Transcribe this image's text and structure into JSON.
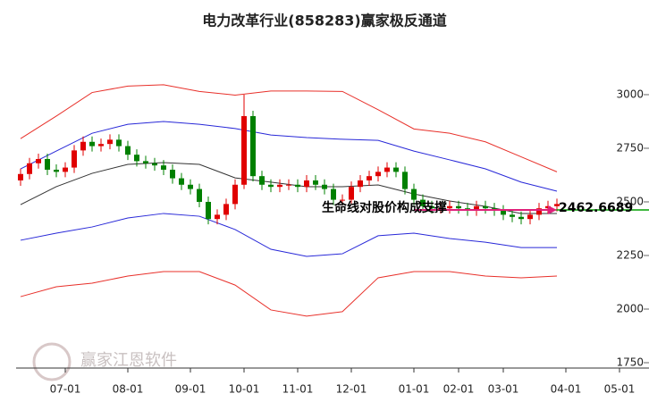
{
  "chart_data": {
    "type": "candlestick",
    "title": "电力改革行业(858283)赢家极反通道",
    "watermark": "赢家江恩软件",
    "annotation": "生命线对股价构成支撑",
    "support_value": 2462.6689,
    "up_color": "#e00000",
    "down_color": "#008000",
    "support_color": "#00a000",
    "arrow_color": "#e0207a",
    "ylim": [
      1725,
      3254
    ],
    "yticks": [
      1750,
      2000,
      2250,
      2500,
      2750,
      3000
    ],
    "xlim": [
      -0.5,
      67.5
    ],
    "xticks": [
      {
        "value": 5,
        "label": "07-01"
      },
      {
        "value": 12,
        "label": "08-01"
      },
      {
        "value": 19,
        "label": "09-01"
      },
      {
        "value": 25,
        "label": "10-01"
      },
      {
        "value": 31,
        "label": "11-01"
      },
      {
        "value": 37,
        "label": "12-01"
      },
      {
        "value": 44,
        "label": "01-01"
      },
      {
        "value": 49,
        "label": "02-01"
      },
      {
        "value": 54,
        "label": "03-01"
      },
      {
        "value": 61,
        "label": "04-01"
      },
      {
        "value": 67,
        "label": "05-01"
      }
    ],
    "candles": [
      [
        2600,
        2655,
        2575,
        2630
      ],
      [
        2630,
        2705,
        2605,
        2680
      ],
      [
        2680,
        2725,
        2655,
        2700
      ],
      [
        2700,
        2725,
        2625,
        2650
      ],
      [
        2650,
        2675,
        2615,
        2640
      ],
      [
        2640,
        2685,
        2615,
        2660
      ],
      [
        2660,
        2765,
        2635,
        2740
      ],
      [
        2740,
        2805,
        2715,
        2780
      ],
      [
        2780,
        2805,
        2735,
        2760
      ],
      [
        2760,
        2795,
        2735,
        2770
      ],
      [
        2770,
        2815,
        2745,
        2790
      ],
      [
        2790,
        2815,
        2735,
        2760
      ],
      [
        2760,
        2785,
        2695,
        2720
      ],
      [
        2720,
        2745,
        2665,
        2690
      ],
      [
        2690,
        2715,
        2655,
        2680
      ],
      [
        2680,
        2705,
        2645,
        2670
      ],
      [
        2670,
        2695,
        2625,
        2650
      ],
      [
        2650,
        2675,
        2585,
        2610
      ],
      [
        2610,
        2635,
        2555,
        2580
      ],
      [
        2580,
        2605,
        2535,
        2560
      ],
      [
        2560,
        2585,
        2475,
        2500
      ],
      [
        2500,
        2525,
        2395,
        2420
      ],
      [
        2420,
        2465,
        2395,
        2440
      ],
      [
        2440,
        2515,
        2415,
        2490
      ],
      [
        2490,
        2605,
        2465,
        2580
      ],
      [
        2580,
        3000,
        2560,
        2900
      ],
      [
        2900,
        2925,
        2595,
        2620
      ],
      [
        2620,
        2645,
        2555,
        2580
      ],
      [
        2580,
        2605,
        2545,
        2570
      ],
      [
        2570,
        2605,
        2545,
        2580
      ],
      [
        2580,
        2605,
        2555,
        2580
      ],
      [
        2580,
        2605,
        2545,
        2570
      ],
      [
        2570,
        2625,
        2545,
        2600
      ],
      [
        2600,
        2625,
        2555,
        2580
      ],
      [
        2580,
        2605,
        2535,
        2560
      ],
      [
        2560,
        2585,
        2485,
        2510
      ],
      [
        2510,
        2535,
        2485,
        2510
      ],
      [
        2510,
        2595,
        2485,
        2570
      ],
      [
        2570,
        2625,
        2545,
        2600
      ],
      [
        2600,
        2645,
        2575,
        2620
      ],
      [
        2620,
        2665,
        2595,
        2640
      ],
      [
        2640,
        2685,
        2615,
        2660
      ],
      [
        2660,
        2685,
        2615,
        2640
      ],
      [
        2640,
        2665,
        2535,
        2560
      ],
      [
        2560,
        2585,
        2485,
        2510
      ],
      [
        2510,
        2535,
        2455,
        2480
      ],
      [
        2480,
        2505,
        2445,
        2470
      ],
      [
        2470,
        2495,
        2445,
        2470
      ],
      [
        2470,
        2505,
        2445,
        2480
      ],
      [
        2480,
        2505,
        2445,
        2470
      ],
      [
        2470,
        2495,
        2435,
        2460
      ],
      [
        2460,
        2505,
        2435,
        2480
      ],
      [
        2480,
        2505,
        2445,
        2470
      ],
      [
        2470,
        2495,
        2435,
        2460
      ],
      [
        2460,
        2485,
        2415,
        2440
      ],
      [
        2440,
        2465,
        2405,
        2430
      ],
      [
        2430,
        2455,
        2395,
        2420
      ],
      [
        2420,
        2465,
        2395,
        2440
      ],
      [
        2440,
        2495,
        2415,
        2470
      ],
      [
        2470,
        2505,
        2445,
        2480
      ],
      [
        2480,
        2515,
        2455,
        2490
      ]
    ],
    "band_x": [
      0,
      4,
      8,
      12,
      16,
      20,
      24,
      28,
      32,
      36,
      40,
      44,
      48,
      52,
      56,
      60
    ],
    "series": [
      {
        "color": "#e8302a",
        "values": [
          2795,
          2900,
          3010,
          3040,
          3046,
          3015,
          2998,
          3017,
          3017,
          3015,
          2930,
          2840,
          2820,
          2780,
          2710,
          2640
        ]
      },
      {
        "color": "#2828d8",
        "values": [
          2654,
          2737,
          2820,
          2862,
          2875,
          2862,
          2842,
          2812,
          2800,
          2792,
          2787,
          2737,
          2696,
          2654,
          2592,
          2550
        ]
      },
      {
        "color": "#333333",
        "values": [
          2487,
          2571,
          2633,
          2675,
          2683,
          2675,
          2612,
          2592,
          2571,
          2571,
          2579,
          2537,
          2504,
          2479,
          2446,
          2446
        ]
      },
      {
        "color": "#2828d8",
        "values": [
          2321,
          2354,
          2383,
          2425,
          2446,
          2433,
          2371,
          2279,
          2246,
          2258,
          2342,
          2354,
          2329,
          2312,
          2287,
          2287
        ]
      },
      {
        "color": "#e8302a",
        "values": [
          2058,
          2104,
          2121,
          2154,
          2175,
          2175,
          2112,
          1996,
          1967,
          1988,
          2146,
          2175,
          2175,
          2154,
          2146,
          2154
        ]
      }
    ]
  }
}
